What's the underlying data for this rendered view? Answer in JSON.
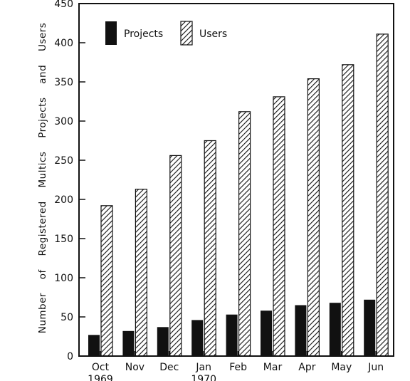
{
  "chart_data": {
    "type": "bar",
    "title": "",
    "xlabel": "",
    "ylabel": "Number of Registered Multics Projects and Users",
    "ylabel_words": [
      "Number",
      "of",
      "Registered",
      "Multics",
      "Projects",
      "and",
      "Users"
    ],
    "ylim": [
      0,
      450
    ],
    "yticks": [
      0,
      50,
      100,
      150,
      200,
      250,
      300,
      350,
      400,
      450
    ],
    "grid": false,
    "legend_position": "top-left",
    "categories": [
      {
        "label": "Oct",
        "sublabel": "1969"
      },
      {
        "label": "Nov",
        "sublabel": ""
      },
      {
        "label": "Dec",
        "sublabel": ""
      },
      {
        "label": "Jan",
        "sublabel": "1970"
      },
      {
        "label": "Feb",
        "sublabel": ""
      },
      {
        "label": "Mar",
        "sublabel": ""
      },
      {
        "label": "Apr",
        "sublabel": ""
      },
      {
        "label": "May",
        "sublabel": ""
      },
      {
        "label": "Jun",
        "sublabel": ""
      }
    ],
    "series": [
      {
        "name": "Projects",
        "fill": "solid",
        "color": "#111111",
        "values": [
          27,
          32,
          37,
          46,
          53,
          58,
          65,
          68,
          72
        ]
      },
      {
        "name": "Users",
        "fill": "diagonal-hatch",
        "color": "#111111",
        "values": [
          192,
          213,
          256,
          275,
          312,
          331,
          354,
          372,
          411
        ]
      }
    ]
  }
}
